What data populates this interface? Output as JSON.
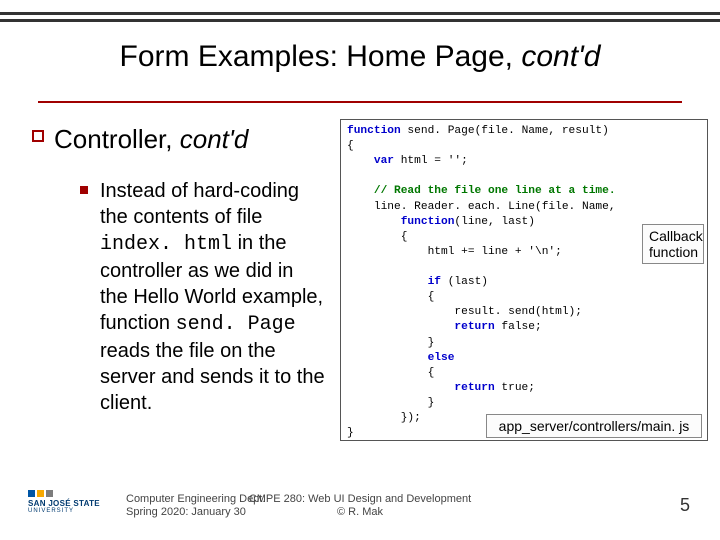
{
  "accent_color": "#a00000",
  "title": {
    "plain": "Form Examples: Home Page, ",
    "italic": "cont'd",
    "fontsize": 30
  },
  "subtitle": {
    "plain": "Controller, ",
    "italic": "cont'd",
    "fontsize": 26
  },
  "body": {
    "t1": "Instead of hard-coding the contents of file ",
    "code1": "index. html",
    "t2": " in the controller as we did in the Hello World example, function ",
    "code2": "send. Page",
    "t3": " reads the file on the server and sends it to the client.",
    "fontsize": 20
  },
  "code": {
    "font_family": "Courier New",
    "fontsize": 11.2,
    "keyword_color": "#0000cc",
    "comment_color": "#007700",
    "border_color": "#555555",
    "lines": {
      "l1a": "function",
      "l1b": " send. Page(file. Name, result)",
      "l2": "{",
      "l3a": "    var",
      "l3b": " html = '';",
      "blank1": "",
      "l4": "    // Read the file one line at a time.",
      "l5": "    line. Reader. each. Line(file. Name,",
      "l6a": "        function",
      "l6b": "(line, last)",
      "l7": "        {",
      "l8": "            html += line + '\\n';",
      "blank2": "",
      "l9a": "            if",
      "l9b": " (last)",
      "l10": "            {",
      "l11": "                result. send(html);",
      "l12a": "                return",
      "l12b": " false;",
      "l13": "            }",
      "l14": "            else",
      "l15": "            {",
      "l16a": "                return",
      "l16b": " true;",
      "l17": "            }",
      "l18": "        });",
      "l19": "}"
    }
  },
  "callouts": {
    "callback_l1": "Callback",
    "callback_l2": "function",
    "filepath": "app_server/controllers/main. js",
    "fontsize": 14,
    "border_color": "#888888",
    "bg_color": "#fcfcfc"
  },
  "footer": {
    "left_l1": "Computer Engineering Dept.",
    "left_l2": "Spring 2020: January 30",
    "mid_l1": "CMPE 280: Web UI Design and Development",
    "mid_l2": "© R. Mak",
    "page_number": "5",
    "fontsize": 11
  },
  "logo": {
    "colors": [
      "#0055a5",
      "#f7a800",
      "#7c7c7c"
    ],
    "text1": "SAN JOSÉ STATE",
    "text2": "UNIVERSITY"
  }
}
